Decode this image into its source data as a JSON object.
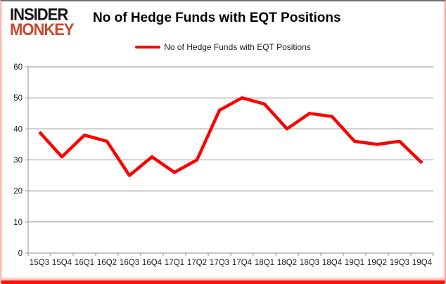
{
  "brand": {
    "line1": "INSIDER",
    "line2": "MONKEY",
    "accent_color": "#c7482d",
    "text_color": "#141414"
  },
  "header": {
    "title": "No of Hedge Funds with EQT Positions"
  },
  "legend": {
    "label": "No of Hedge Funds with EQT Positions",
    "line_color": "#ff0000"
  },
  "chart_data": {
    "type": "line",
    "title": "No of Hedge Funds with EQT Positions",
    "categories": [
      "15Q3",
      "15Q4",
      "16Q1",
      "16Q2",
      "16Q3",
      "16Q4",
      "17Q1",
      "17Q2",
      "17Q3",
      "17Q4",
      "18Q1",
      "18Q2",
      "18Q3",
      "18Q4",
      "19Q1",
      "19Q2",
      "19Q3",
      "19Q4"
    ],
    "values": [
      39,
      31,
      38,
      36,
      25,
      31,
      26,
      30,
      46,
      50,
      48,
      40,
      45,
      44,
      36,
      35,
      36,
      29
    ],
    "xlabel": "",
    "ylabel": "",
    "ylim": [
      0,
      60
    ],
    "ytick_interval": 10,
    "grid": true,
    "legend_position": "top-center",
    "line_color": "#fe0000",
    "gridline_color": "#8f8f8f",
    "axis_color": "#8f8f8f"
  }
}
